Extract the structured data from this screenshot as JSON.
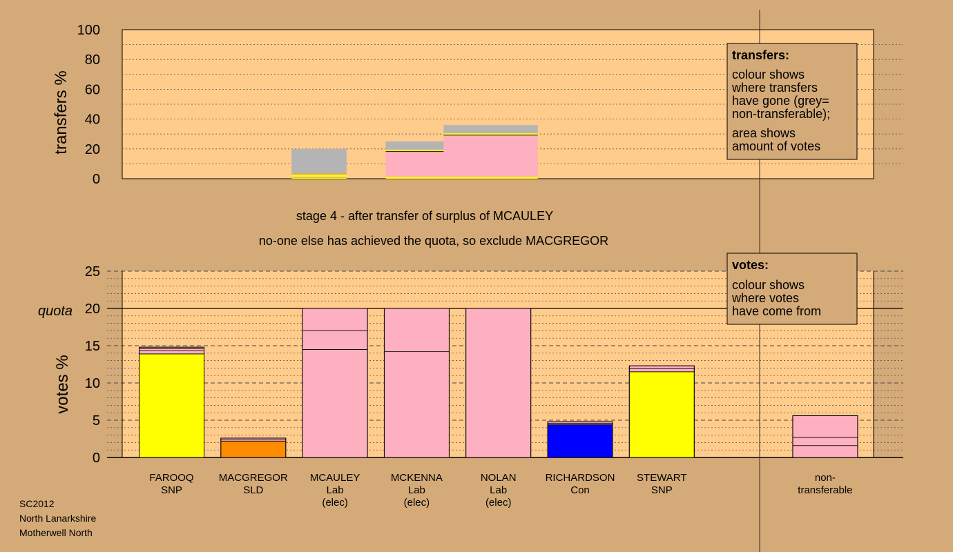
{
  "chart_data": [
    {
      "type": "bar",
      "panel": "transfers",
      "ylabel": "transfers %",
      "ylim": [
        0,
        100
      ],
      "yticks": [
        0,
        20,
        40,
        60,
        80,
        100
      ],
      "legend": {
        "title": "transfers:",
        "lines": [
          "colour shows",
          "where transfers",
          "have gone (grey=",
          "non-transferable);"
        ],
        "lines2": [
          "area shows",
          "amount of votes"
        ],
        "placement": "top-right"
      },
      "bars": [
        {
          "x_from": 2.25,
          "x_to": 2.98,
          "segments": [
            {
              "value": 0.6,
              "color": "#ffff00"
            },
            {
              "value": 0.6,
              "color": "#d4aa78"
            },
            {
              "value": 1.5,
              "color": "#ffff00"
            },
            {
              "value": 1.3,
              "color": "#d4aa78"
            },
            {
              "value": 16.0,
              "color": "#b4b4b4"
            }
          ]
        },
        {
          "x_from": 3.5,
          "x_to": 4.27,
          "segments": [
            {
              "value": 1.2,
              "color": "#ffff00"
            },
            {
              "value": 16.8,
              "color": "#ffb0c0"
            },
            {
              "value": 0.5,
              "color": "#2a1a10"
            },
            {
              "value": 1.0,
              "color": "#ffff00"
            },
            {
              "value": 5.5,
              "color": "#b4b4b4"
            }
          ]
        },
        {
          "x_from": 4.27,
          "x_to": 5.52,
          "segments": [
            {
              "value": 1.2,
              "color": "#ffff00"
            },
            {
              "value": 27.8,
              "color": "#ffb0c0"
            },
            {
              "value": 0.5,
              "color": "#2a1a10"
            },
            {
              "value": 1.0,
              "color": "#ffff00"
            },
            {
              "value": 5.5,
              "color": "#b4b4b4"
            }
          ]
        }
      ]
    },
    {
      "type": "bar",
      "panel": "votes",
      "title": "stage 4 - after transfer of surplus of MCAULEY",
      "subtitle": "no-one else has achieved the quota, so exclude MACGREGOR",
      "ylabel": "votes %",
      "ylim": [
        0,
        25
      ],
      "yticks": [
        0,
        5,
        10,
        15,
        20,
        25
      ],
      "quota": 20,
      "quota_label": "quota",
      "legend": {
        "title": "votes:",
        "lines": [
          "colour shows",
          "where votes",
          "have come from"
        ],
        "placement": "top-right"
      },
      "categories": [
        {
          "name": "FAROOQ",
          "party": "SNP",
          "note": ""
        },
        {
          "name": "MACGREGOR",
          "party": "SLD",
          "note": ""
        },
        {
          "name": "MCAULEY",
          "party": "Lab",
          "note": "(elec)"
        },
        {
          "name": "MCKENNA",
          "party": "Lab",
          "note": "(elec)"
        },
        {
          "name": "NOLAN",
          "party": "Lab",
          "note": "(elec)"
        },
        {
          "name": "RICHARDSON",
          "party": "Con",
          "note": ""
        },
        {
          "name": "STEWART",
          "party": "SNP",
          "note": ""
        },
        {
          "name": "",
          "party": "",
          "note": ""
        },
        {
          "name": "non-",
          "party": "transferable",
          "note": ""
        }
      ],
      "series": [
        {
          "category": "FAROOQ",
          "segments": [
            {
              "value": 13.9,
              "color": "#ffff00"
            },
            {
              "value": 0.4,
              "color": "#ffb0c0"
            },
            {
              "value": 0.3,
              "color": "#ffb0c0"
            },
            {
              "value": 0.2,
              "color": "#ffb0c0"
            }
          ]
        },
        {
          "category": "MACGREGOR",
          "segments": [
            {
              "value": 2.2,
              "color": "#ff8c00"
            },
            {
              "value": 0.2,
              "color": "#ffb0c0"
            },
            {
              "value": 0.2,
              "color": "#ffb0c0"
            }
          ]
        },
        {
          "category": "MCAULEY",
          "segments": [
            {
              "value": 14.5,
              "color": "#ffb0c0"
            },
            {
              "value": 2.5,
              "color": "#ffb0c0"
            },
            {
              "value": 3.0,
              "color": "#ffb0c0"
            }
          ]
        },
        {
          "category": "MCKENNA",
          "segments": [
            {
              "value": 14.2,
              "color": "#ffb0c0"
            },
            {
              "value": 5.8,
              "color": "#ffb0c0"
            }
          ]
        },
        {
          "category": "NOLAN",
          "segments": [
            {
              "value": 20.0,
              "color": "#ffb0c0"
            }
          ]
        },
        {
          "category": "RICHARDSON",
          "segments": [
            {
              "value": 4.4,
              "color": "#0000ff"
            },
            {
              "value": 0.2,
              "color": "#ffb0c0"
            },
            {
              "value": 0.2,
              "color": "#ffb0c0"
            }
          ]
        },
        {
          "category": "STEWART",
          "segments": [
            {
              "value": 11.5,
              "color": "#ffff00"
            },
            {
              "value": 0.4,
              "color": "#ffb0c0"
            },
            {
              "value": 0.4,
              "color": "#ffb0c0"
            }
          ]
        },
        {
          "category": "",
          "segments": []
        },
        {
          "category": "non-transferable",
          "segments": [
            {
              "value": 1.6,
              "color": "#ffb0c0"
            },
            {
              "value": 1.1,
              "color": "#ffb0c0"
            },
            {
              "value": 2.9,
              "color": "#ffb0c0"
            }
          ]
        }
      ]
    }
  ],
  "footer": {
    "line1": "SC2012",
    "line2": "North Lanarkshire",
    "line3": "Motherwell North"
  },
  "colors": {
    "background": "#d4aa78",
    "plot_area": "#ffcc8c",
    "non_transferable": "#b4b4b4"
  }
}
